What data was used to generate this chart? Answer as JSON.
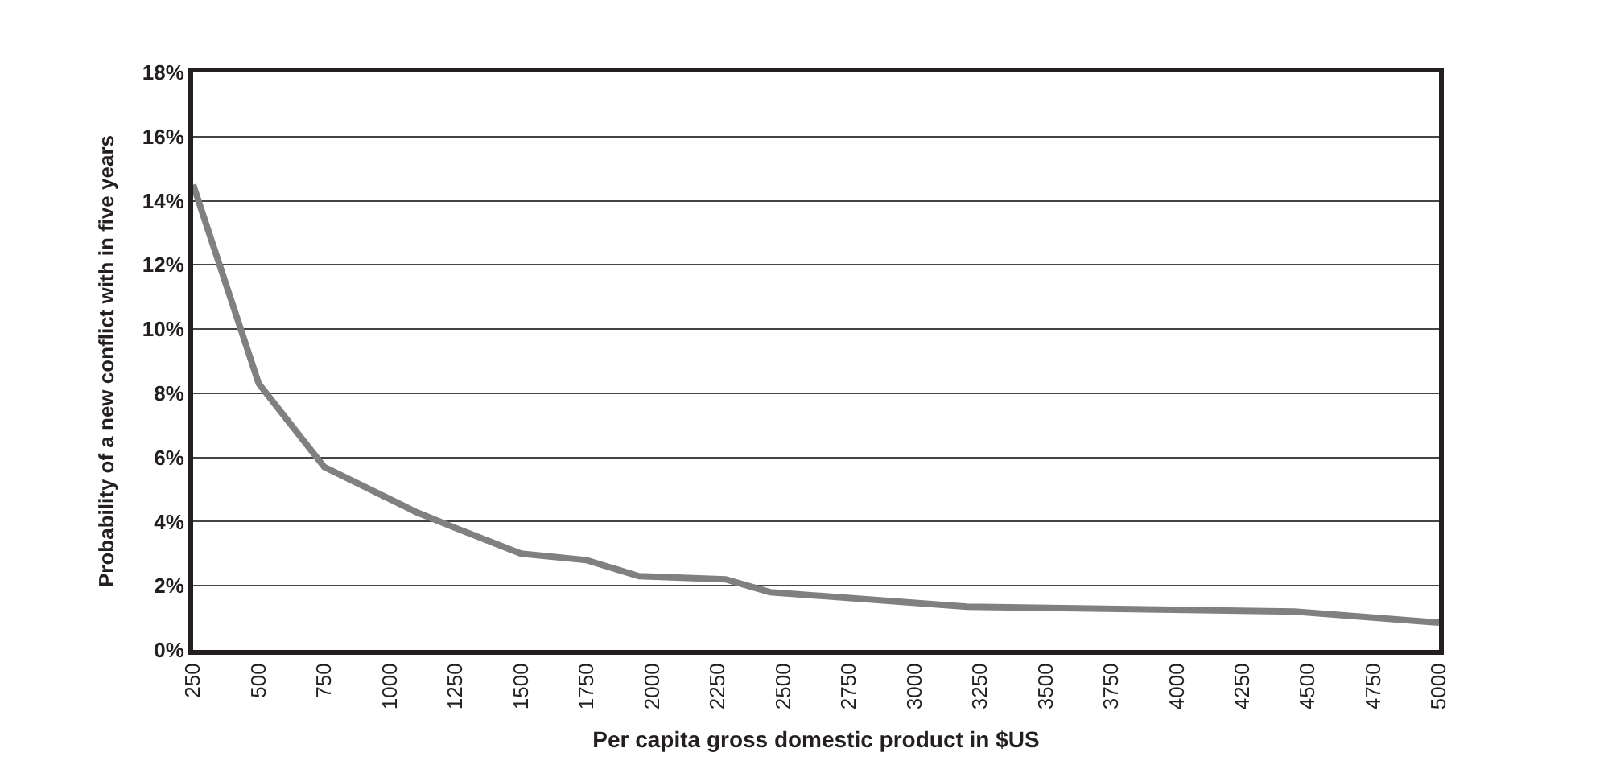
{
  "chart_data": {
    "type": "line",
    "xlabel": "Per capita gross domestic product in $US",
    "ylabel": "Probability of a new conflict with in five years",
    "x": [
      250,
      500,
      750,
      1100,
      1250,
      1500,
      1750,
      1950,
      2280,
      2450,
      3200,
      4450,
      5000
    ],
    "series": [
      {
        "color": "#808080",
        "values": [
          14.5,
          8.3,
          5.7,
          4.3,
          3.8,
          3.0,
          2.8,
          2.3,
          2.2,
          1.8,
          1.35,
          1.2,
          0.85
        ]
      }
    ],
    "xlim": [
      250,
      5000
    ],
    "xticks": [
      250,
      500,
      750,
      1000,
      1250,
      1500,
      1750,
      2000,
      2250,
      2500,
      2750,
      3000,
      3250,
      3500,
      3750,
      4000,
      4250,
      4500,
      4750,
      5000
    ],
    "ylim": [
      0,
      18
    ],
    "yticks": [
      {
        "value": 0,
        "label": "0%"
      },
      {
        "value": 2,
        "label": "2%"
      },
      {
        "value": 4,
        "label": "4%"
      },
      {
        "value": 6,
        "label": "6%"
      },
      {
        "value": 8,
        "label": "8%"
      },
      {
        "value": 10,
        "label": "10%"
      },
      {
        "value": 12,
        "label": "12%"
      },
      {
        "value": 14,
        "label": "14%"
      },
      {
        "value": 16,
        "label": "16%"
      },
      {
        "value": 18,
        "label": "18%"
      }
    ],
    "grid": "y",
    "marker": "none",
    "line_style": "solid"
  }
}
